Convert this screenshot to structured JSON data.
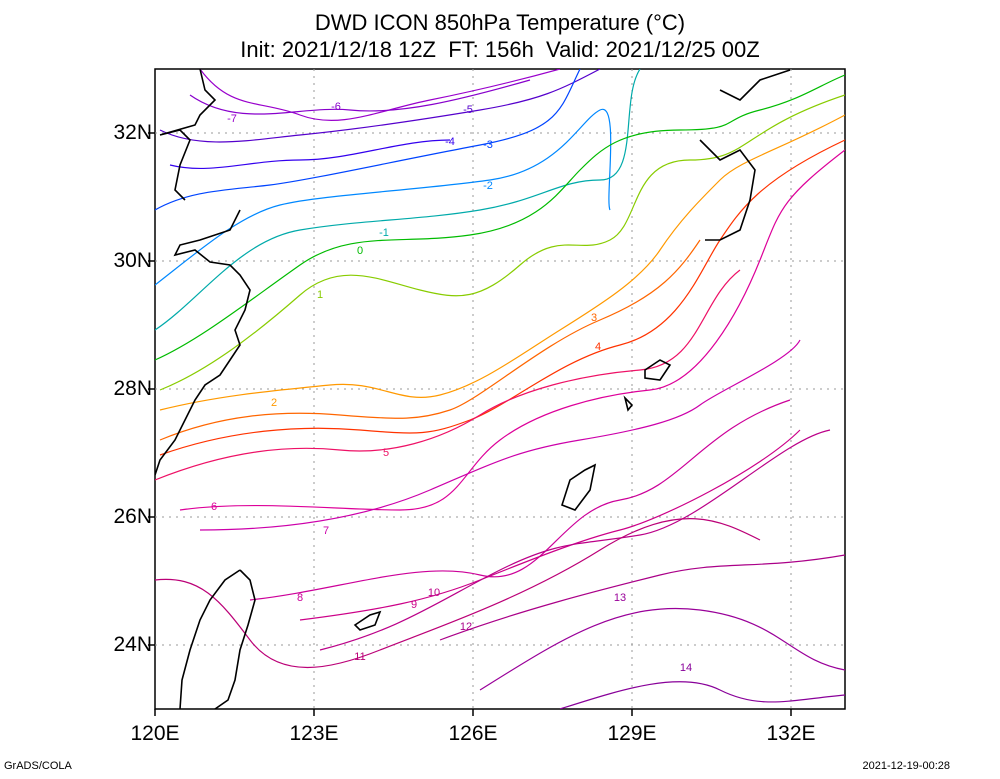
{
  "title": {
    "line1": "DWD ICON 850hPa Temperature (°C)",
    "line2": "Init: 2021/12/18 12Z  FT: 156h  Valid: 2021/12/25 00Z"
  },
  "axes": {
    "x_ticks": [
      "120E",
      "123E",
      "126E",
      "129E",
      "132E"
    ],
    "y_ticks": [
      "32N",
      "30N",
      "28N",
      "26N",
      "24N"
    ],
    "lon_range": [
      120,
      133
    ],
    "lat_range": [
      23,
      33
    ]
  },
  "contour_labels": [
    "-7",
    "-6",
    "-5",
    "-4",
    "-3",
    "-2",
    "-1",
    "0",
    "1",
    "2",
    "3",
    "4",
    "5",
    "6",
    "7",
    "8",
    "9",
    "10",
    "11",
    "12",
    "13",
    "14"
  ],
  "colors": {
    "cold": "#0000ff",
    "zero": "#00c000",
    "warm": "#ff6000",
    "hot": "#c000c0",
    "coast": "#000000",
    "grid": "#999999"
  },
  "footer": {
    "left": "GrADS/COLA",
    "right": "2021-12-19-00:28"
  }
}
